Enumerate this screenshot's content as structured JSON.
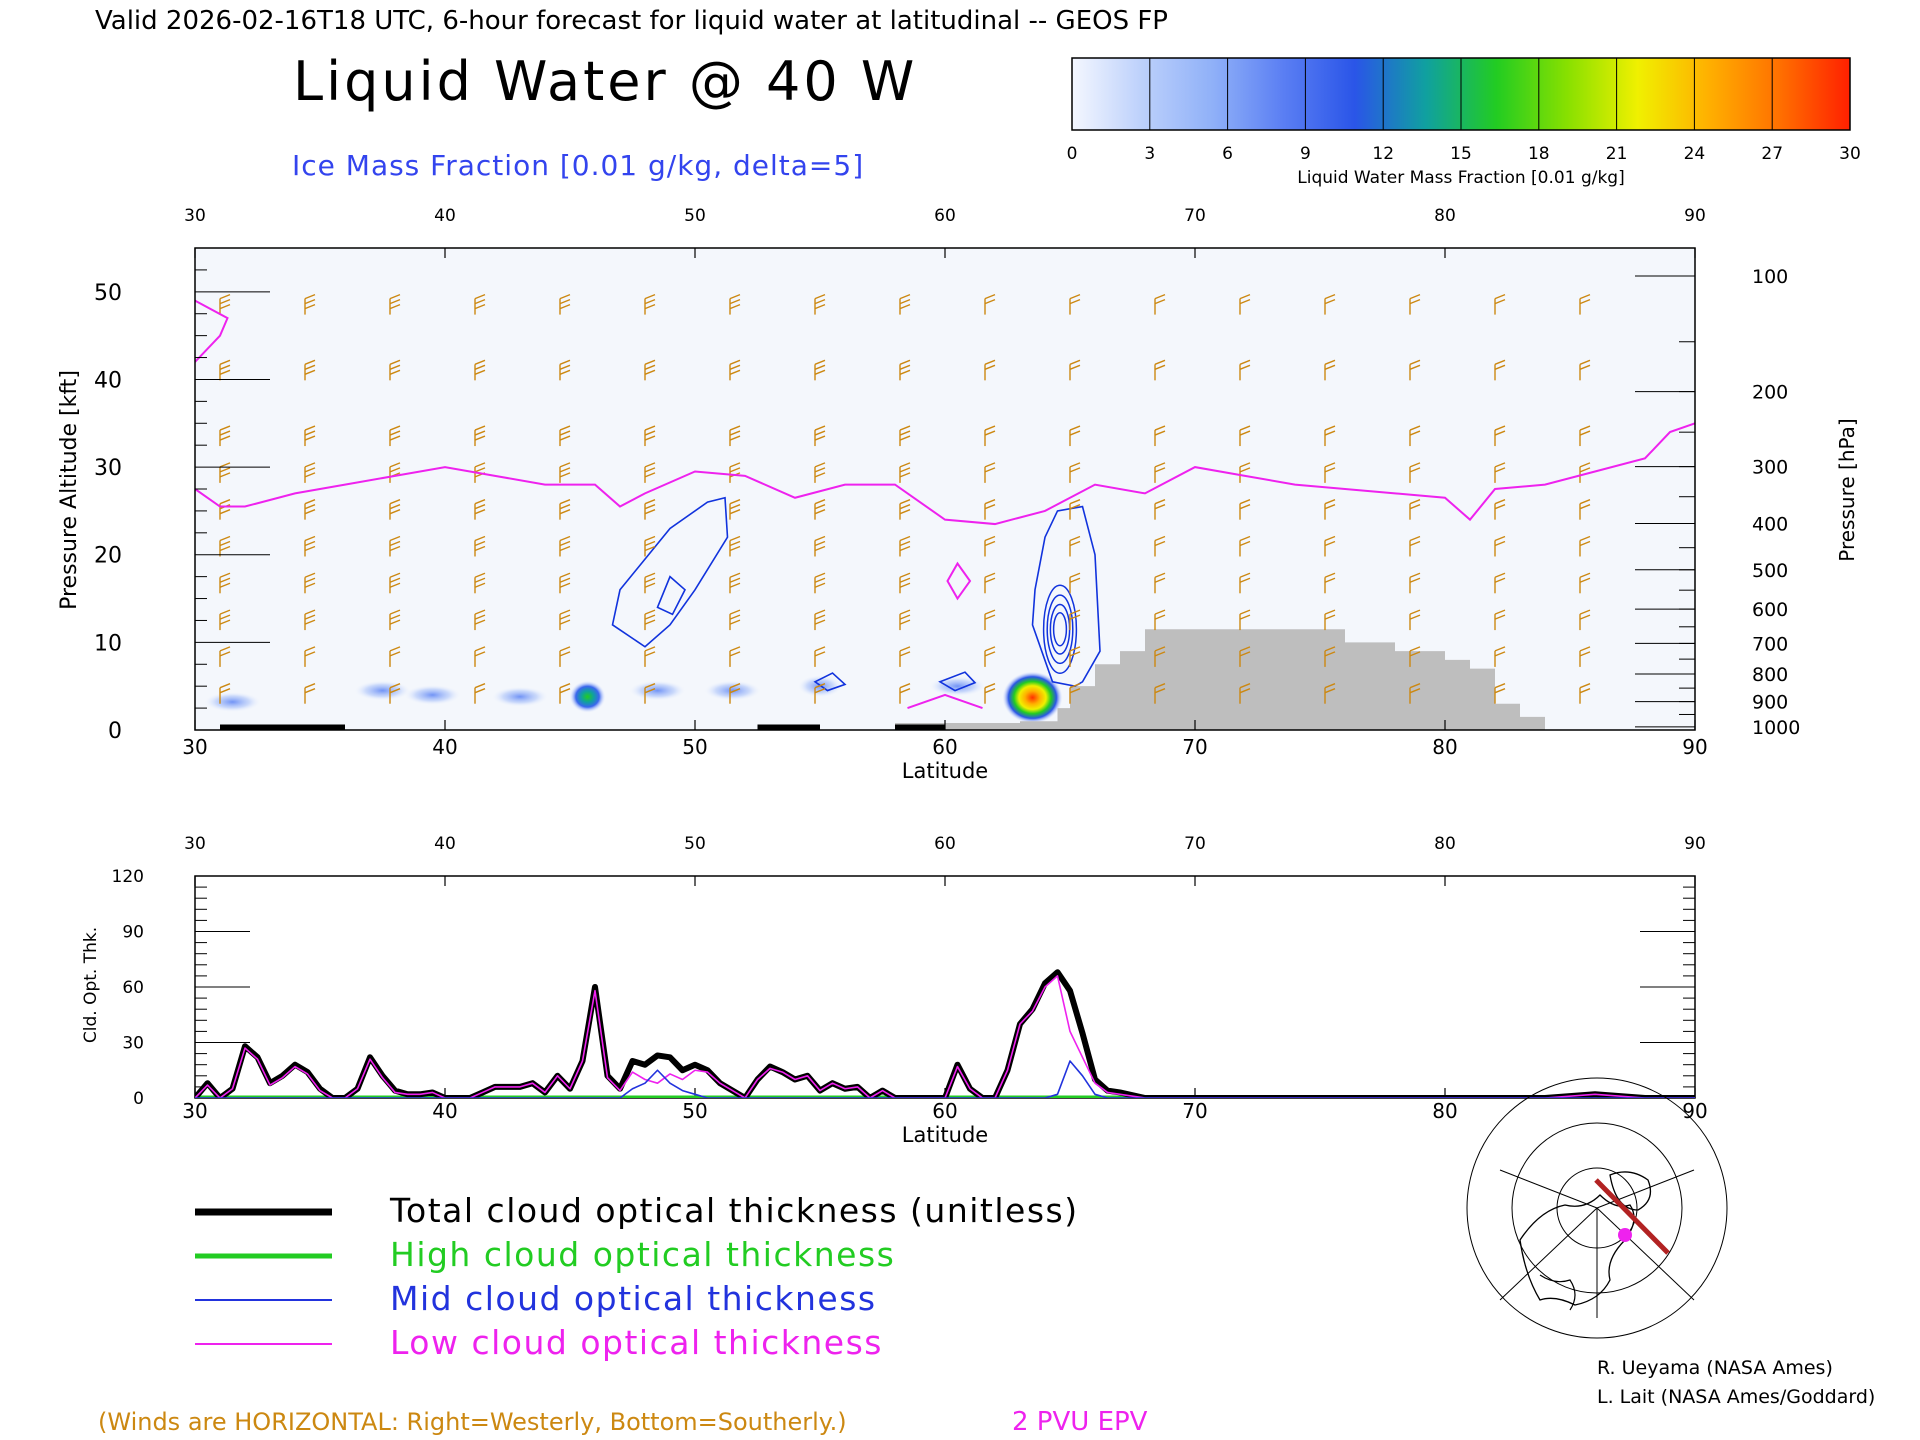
{
  "header": {
    "valid_line": "Valid 2026-02-16T18 UTC, 6-hour forecast for liquid water at latitudinal -- GEOS FP",
    "main_title": "Liquid Water @ 40 W",
    "ice_label": "Ice Mass Fraction [0.01 g/kg, delta=5]"
  },
  "colorbar": {
    "ticks": [
      "0",
      "3",
      "6",
      "9",
      "12",
      "15",
      "18",
      "21",
      "24",
      "27",
      "30"
    ],
    "label": "Liquid Water Mass Fraction [0.01 g/kg]",
    "colors": [
      "#f4f7ff",
      "#bcd0fb",
      "#8fb0f8",
      "#5a7ef3",
      "#2a55e8",
      "#10a0a0",
      "#22cc22",
      "#88e000",
      "#f0f000",
      "#ffb000",
      "#ff7000",
      "#ff2000"
    ]
  },
  "top_panel": {
    "xlabel": "Latitude",
    "ylabel_left": "Pressure Altitude [kft]",
    "ylabel_right": "Pressure [hPa]",
    "x_ticks": [
      "30",
      "40",
      "50",
      "60",
      "70",
      "80",
      "90"
    ],
    "y_ticks_left": [
      "0",
      "10",
      "20",
      "30",
      "40",
      "50"
    ],
    "y_ticks_right": [
      "100",
      "200",
      "300",
      "400",
      "500",
      "600",
      "700",
      "800",
      "900",
      "1000"
    ]
  },
  "bottom_panel": {
    "xlabel": "Latitude",
    "ylabel": "Cld. Opt. Thk.",
    "x_ticks": [
      "30",
      "40",
      "50",
      "60",
      "70",
      "80",
      "90"
    ],
    "y_ticks": [
      "0",
      "30",
      "60",
      "90",
      "120"
    ]
  },
  "legend": {
    "items": [
      {
        "label": "Total cloud optical thickness (unitless)",
        "color": "#000000"
      },
      {
        "label": "High cloud optical thickness",
        "color": "#22cc22"
      },
      {
        "label": "Mid cloud optical thickness",
        "color": "#2233dd"
      },
      {
        "label": "Low cloud optical thickness",
        "color": "#ee22ee"
      }
    ]
  },
  "footer": {
    "winds_note": "(Winds are HORIZONTAL: Right=Westerly, Bottom=Southerly.)",
    "pvu_label": "2 PVU EPV",
    "credit1": "R. Ueyama (NASA Ames)",
    "credit2": "L. Lait (NASA Ames/Goddard)"
  },
  "colors": {
    "wind_barb": "#cc8811",
    "epv": "#ee22ee",
    "ice_contour": "#1133dd",
    "terrain": "#bebebe"
  },
  "chart_data": [
    {
      "type": "heatmap",
      "title": "Liquid Water @ 40 W",
      "xlabel": "Latitude",
      "ylabel": "Pressure Altitude [kft]",
      "xlim": [
        30,
        90
      ],
      "ylim": [
        0,
        55
      ],
      "liquid_water_blobs": [
        {
          "lat": 31.5,
          "alt": 3.2,
          "value": 4
        },
        {
          "lat": 37.5,
          "alt": 4.5,
          "value": 6
        },
        {
          "lat": 39.5,
          "alt": 4.0,
          "value": 4
        },
        {
          "lat": 43.0,
          "alt": 3.8,
          "value": 5
        },
        {
          "lat": 45.7,
          "alt": 3.8,
          "value": 16
        },
        {
          "lat": 48.5,
          "alt": 4.5,
          "value": 4
        },
        {
          "lat": 51.5,
          "alt": 4.5,
          "value": 3
        },
        {
          "lat": 55.0,
          "alt": 5.0,
          "value": 8
        },
        {
          "lat": 60.5,
          "alt": 5.0,
          "value": 5
        },
        {
          "lat": 63.5,
          "alt": 3.7,
          "value": 27
        }
      ],
      "epv_2pvu_line": {
        "name": "2 PVU EPV",
        "lat": [
          30,
          31,
          32,
          34,
          36,
          38,
          40,
          42,
          44,
          46,
          47,
          48,
          50,
          52,
          54,
          56,
          58,
          60,
          62,
          64,
          66,
          68,
          70,
          72,
          74,
          76,
          78,
          80,
          81,
          82,
          84,
          86,
          88,
          89,
          90
        ],
        "alt_kft": [
          27.5,
          25.5,
          25.5,
          27,
          28,
          29,
          30,
          29,
          28,
          28,
          25.5,
          27,
          29.5,
          29,
          26.5,
          28,
          28,
          24,
          23.5,
          25,
          28,
          27,
          30,
          29,
          28,
          27.5,
          27,
          26.5,
          24,
          27.5,
          28,
          29.5,
          31,
          34,
          35
        ]
      },
      "terrain_kft": {
        "lat": [
          58,
          60,
          62,
          63,
          64.5,
          65,
          66,
          67,
          68,
          69,
          74,
          76,
          78,
          80,
          81,
          82,
          83,
          84,
          90
        ],
        "top": [
          0.8,
          0.8,
          0.8,
          1.0,
          2.5,
          5.0,
          7.5,
          9.0,
          11.5,
          11.5,
          11.5,
          10.0,
          9.0,
          8.0,
          7.0,
          3.0,
          1.5,
          0,
          0
        ]
      },
      "ice_contours": [
        {
          "lat": [
            48.0,
            49.0,
            50.5,
            51.2,
            51.3,
            50.0,
            49.0,
            48.0,
            46.7,
            47.0,
            48.0
          ],
          "alt": [
            19.5,
            23.0,
            26.0,
            26.5,
            22.0,
            16.0,
            12.0,
            9.5,
            12.0,
            16.0,
            19.5
          ]
        },
        {
          "lat": [
            48.5,
            49.0,
            49.6,
            49.1,
            48.5
          ],
          "alt": [
            14.0,
            17.5,
            16.0,
            13.2,
            14.0
          ]
        },
        {
          "lat": [
            64.0,
            64.5,
            65.5,
            66.0,
            66.2,
            65.5,
            65.2,
            64.3,
            63.5,
            63.6,
            64.0
          ],
          "alt": [
            22.0,
            25.0,
            25.5,
            20.0,
            9.0,
            5.5,
            5.0,
            5.5,
            12.0,
            16.0,
            22.0
          ]
        },
        {
          "lat": [
            54.8,
            55.5,
            56.0,
            55.3,
            54.8
          ],
          "alt": [
            5.5,
            6.5,
            5.2,
            4.5,
            5.5
          ]
        },
        {
          "lat": [
            59.8,
            60.8,
            61.2,
            60.4,
            59.8
          ],
          "alt": [
            5.5,
            6.6,
            5.4,
            4.5,
            5.5
          ]
        }
      ]
    },
    {
      "type": "line",
      "ylabel": "Cld. Opt. Thk.",
      "xlabel": "Latitude",
      "xlim": [
        30,
        90
      ],
      "ylim": [
        0,
        120
      ],
      "x": [
        30,
        30.5,
        31,
        31.5,
        32,
        32.5,
        33,
        33.5,
        34,
        34.5,
        35,
        35.5,
        36,
        36.5,
        37,
        37.5,
        38,
        38.5,
        39,
        39.5,
        40,
        40.5,
        41,
        41.5,
        42,
        42.5,
        43,
        43.5,
        44,
        44.5,
        45,
        45.5,
        46,
        46.5,
        47,
        47.5,
        48,
        48.5,
        49,
        49.5,
        50,
        50.5,
        51,
        51.5,
        52,
        52.5,
        53,
        53.5,
        54,
        54.5,
        55,
        55.5,
        56,
        56.5,
        57,
        57.5,
        58,
        58.5,
        59,
        59.5,
        60,
        60.5,
        61,
        61.5,
        62,
        62.5,
        63,
        63.5,
        64,
        64.5,
        65,
        65.5,
        66,
        66.5,
        67,
        68,
        70,
        75,
        80,
        84,
        86,
        88,
        90
      ],
      "series": [
        {
          "name": "Total cloud optical thickness (unitless)",
          "values": [
            0,
            8,
            0,
            5,
            28,
            22,
            8,
            12,
            18,
            14,
            5,
            0,
            0,
            5,
            22,
            12,
            4,
            2,
            2,
            3,
            0,
            0,
            0,
            3,
            6,
            6,
            6,
            8,
            3,
            12,
            5,
            20,
            60,
            12,
            5,
            20,
            18,
            23,
            22,
            15,
            18,
            15,
            8,
            4,
            0,
            10,
            17,
            14,
            10,
            12,
            4,
            8,
            5,
            6,
            0,
            4,
            0,
            0,
            0,
            0,
            0,
            18,
            5,
            0,
            0,
            15,
            40,
            48,
            62,
            68,
            58,
            35,
            10,
            4,
            3,
            0,
            0,
            0,
            0,
            0,
            2,
            0,
            0
          ]
        },
        {
          "name": "High cloud optical thickness",
          "values": [
            0,
            0,
            0,
            0,
            0,
            0,
            0,
            0,
            0,
            0,
            0,
            0,
            0,
            0,
            0,
            0,
            0,
            0,
            0,
            0,
            0,
            0,
            0,
            0,
            0,
            0,
            0,
            0,
            0,
            0,
            0,
            0,
            0,
            0,
            0,
            0,
            0,
            0,
            0,
            0,
            0,
            0,
            0,
            0,
            0,
            0,
            0,
            0,
            0,
            0,
            0,
            0,
            0,
            0,
            0,
            0,
            0,
            0,
            0,
            0,
            0,
            0,
            0,
            0,
            0,
            0,
            0,
            0,
            0,
            0,
            0,
            0,
            0,
            0,
            0,
            0,
            0,
            0,
            0,
            0,
            0,
            0,
            0
          ]
        },
        {
          "name": "Mid cloud optical thickness",
          "values": [
            0,
            0,
            0,
            0,
            0,
            0,
            0,
            0,
            0,
            0,
            0,
            0,
            0,
            0,
            0,
            0,
            0,
            0,
            0,
            0,
            0,
            0,
            0,
            0,
            0,
            0,
            0,
            0,
            0,
            0,
            0,
            0,
            0,
            0,
            0,
            5,
            8,
            15,
            8,
            4,
            2,
            0,
            0,
            0,
            0,
            0,
            0,
            0,
            0,
            0,
            0,
            0,
            0,
            0,
            0,
            0,
            0,
            0,
            0,
            0,
            0,
            0,
            0,
            0,
            0,
            0,
            0,
            0,
            0,
            2,
            20,
            12,
            2,
            0,
            0,
            0,
            0,
            0,
            0,
            0,
            0,
            0,
            0
          ]
        },
        {
          "name": "Low cloud optical thickness",
          "values": [
            0,
            7,
            0,
            5,
            27,
            21,
            7,
            11,
            17,
            13,
            4,
            0,
            0,
            5,
            21,
            11,
            3,
            2,
            2,
            3,
            0,
            0,
            0,
            3,
            6,
            6,
            6,
            8,
            3,
            12,
            5,
            20,
            58,
            11,
            4,
            14,
            10,
            8,
            13,
            10,
            15,
            14,
            8,
            4,
            0,
            10,
            16,
            14,
            10,
            12,
            4,
            8,
            5,
            6,
            0,
            4,
            0,
            0,
            0,
            0,
            0,
            17,
            5,
            0,
            0,
            15,
            40,
            47,
            60,
            66,
            36,
            22,
            8,
            3,
            2,
            0,
            0,
            0,
            0,
            0,
            2,
            0,
            0
          ]
        }
      ]
    }
  ]
}
